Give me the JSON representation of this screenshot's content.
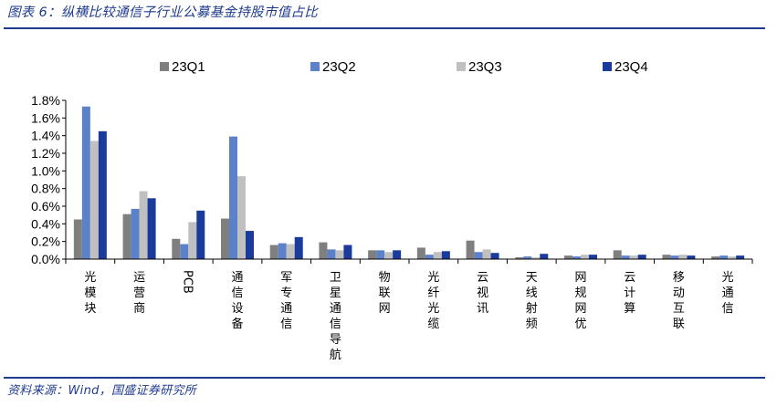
{
  "title": "图表 6：纵横比较通信子行业公募基金持股市值占比",
  "source": "资料来源：Wind，国盛证券研究所",
  "colors": {
    "rule": "#1f3b8f",
    "series": [
      "#7f7f7f",
      "#5b82c9",
      "#c0c0c0",
      "#1a3a9c"
    ]
  },
  "chart_data": {
    "type": "bar",
    "title": "",
    "xlabel": "",
    "ylabel": "",
    "ylim": [
      0,
      0.018
    ],
    "yticks": [
      "0.0%",
      "0.2%",
      "0.4%",
      "0.6%",
      "0.8%",
      "1.0%",
      "1.2%",
      "1.4%",
      "1.6%",
      "1.8%"
    ],
    "legend_position": "top",
    "grid": false,
    "categories": [
      "光模块",
      "运营商",
      "PCB",
      "通信设备",
      "军专通信",
      "卫星通信导航",
      "物联网",
      "光纤光缆",
      "云视讯",
      "天线射频",
      "网规网优",
      "云计算",
      "移动互联",
      "光通信"
    ],
    "series": [
      {
        "name": "23Q1",
        "values": [
          0.0045,
          0.0051,
          0.0023,
          0.0046,
          0.0016,
          0.0019,
          0.001,
          0.0013,
          0.0021,
          0.0002,
          0.0004,
          0.001,
          0.0005,
          0.0003
        ]
      },
      {
        "name": "23Q2",
        "values": [
          0.0173,
          0.0057,
          0.0017,
          0.0139,
          0.0018,
          0.0011,
          0.001,
          0.0005,
          0.0008,
          0.0003,
          0.0003,
          0.0004,
          0.0004,
          0.0004
        ]
      },
      {
        "name": "23Q3",
        "values": [
          0.0134,
          0.0077,
          0.0042,
          0.0094,
          0.0017,
          0.001,
          0.0008,
          0.0008,
          0.0011,
          0.0002,
          0.0005,
          0.0004,
          0.0005,
          0.0003
        ]
      },
      {
        "name": "23Q4",
        "values": [
          0.0145,
          0.0069,
          0.0055,
          0.0032,
          0.0025,
          0.0016,
          0.001,
          0.0009,
          0.0007,
          0.0006,
          0.0005,
          0.0005,
          0.0004,
          0.0004
        ]
      }
    ]
  }
}
